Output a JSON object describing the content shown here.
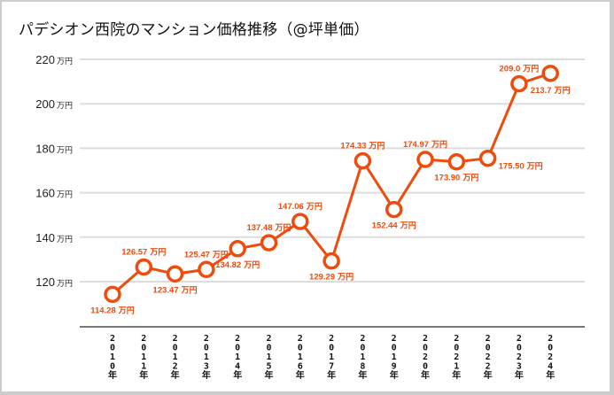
{
  "chart_data": {
    "type": "line",
    "title": "パデシオン西院のマンション価格推移（@坪単価）",
    "xlabel": "",
    "ylabel": "",
    "unit": "万円",
    "categories": [
      "2010年",
      "2011年",
      "2012年",
      "2013年",
      "2014年",
      "2015年",
      "2016年",
      "2017年",
      "2018年",
      "2019年",
      "2020年",
      "2021年",
      "2022年",
      "2023年",
      "2024年"
    ],
    "category_chars": [
      [
        "2",
        "0",
        "1",
        "0",
        "年"
      ],
      [
        "2",
        "0",
        "1",
        "1",
        "年"
      ],
      [
        "2",
        "0",
        "1",
        "2",
        "年"
      ],
      [
        "2",
        "0",
        "1",
        "3",
        "年"
      ],
      [
        "2",
        "0",
        "1",
        "4",
        "年"
      ],
      [
        "2",
        "0",
        "1",
        "5",
        "年"
      ],
      [
        "2",
        "0",
        "1",
        "6",
        "年"
      ],
      [
        "2",
        "0",
        "1",
        "7",
        "年"
      ],
      [
        "2",
        "0",
        "1",
        "8",
        "年"
      ],
      [
        "2",
        "0",
        "1",
        "9",
        "年"
      ],
      [
        "2",
        "0",
        "2",
        "0",
        "年"
      ],
      [
        "2",
        "0",
        "2",
        "1",
        "年"
      ],
      [
        "2",
        "0",
        "2",
        "2",
        "年"
      ],
      [
        "2",
        "0",
        "2",
        "3",
        "年"
      ],
      [
        "2",
        "0",
        "2",
        "4",
        "年"
      ]
    ],
    "series": [
      {
        "name": "坪単価",
        "color": "#ee4b0c",
        "values": [
          114.28,
          126.57,
          123.47,
          125.47,
          134.82,
          137.48,
          147.06,
          129.29,
          174.33,
          152.44,
          174.97,
          173.9,
          175.5,
          209.0,
          213.7
        ],
        "data_labels": [
          "114.28",
          "126.57",
          "123.47",
          "125.47",
          "134.82",
          "137.48",
          "147.06",
          "129.29",
          "174.33",
          "152.44",
          "174.97",
          "173.90",
          "175.50",
          "209.0",
          "213.7"
        ],
        "label_positions": [
          "below",
          "above",
          "below",
          "above",
          "below",
          "above",
          "above",
          "below",
          "above",
          "below",
          "above",
          "below",
          "right",
          "above",
          "below"
        ]
      }
    ],
    "yticks": [
      120,
      140,
      160,
      180,
      200,
      220
    ],
    "ytick_labels": [
      "120",
      "140",
      "160",
      "180",
      "200",
      "220"
    ],
    "ylim": [
      100,
      220
    ],
    "grid": true,
    "legend": "none"
  }
}
